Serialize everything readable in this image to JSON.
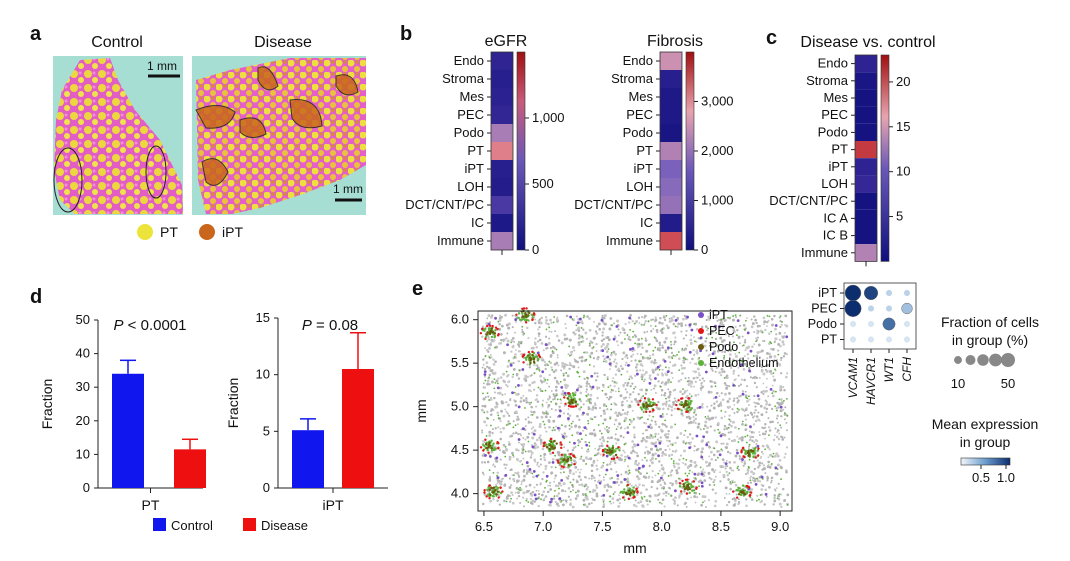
{
  "panel_labels": {
    "a": "a",
    "b": "b",
    "c": "c",
    "d": "d",
    "e": "e"
  },
  "panel_a": {
    "control_title": "Control",
    "disease_title": "Disease",
    "scale_control": "1 mm",
    "scale_disease": "1 mm",
    "legend": [
      {
        "label": "PT",
        "color": "#ece43a"
      },
      {
        "label": "iPT",
        "color": "#c9661c"
      }
    ]
  },
  "chart_data": [
    {
      "id": "egfr",
      "type": "heatmap",
      "title": "eGFR",
      "rows": [
        "Endo",
        "Stroma",
        "Mes",
        "PEC",
        "Podo",
        "PT",
        "iPT",
        "LOH",
        "DCT/CNT/PC",
        "IC",
        "Immune"
      ],
      "values": [
        400,
        300,
        350,
        420,
        950,
        1200,
        300,
        250,
        600,
        180,
        950
      ],
      "colorbar": {
        "min": 0,
        "max": 1500,
        "ticks": [
          0,
          500,
          1000
        ],
        "tick_labels": [
          "0",
          "500",
          "1,000"
        ]
      }
    },
    {
      "id": "fibrosis",
      "type": "heatmap",
      "title": "Fibrosis",
      "rows": [
        "Endo",
        "Stroma",
        "Mes",
        "PEC",
        "Podo",
        "PT",
        "iPT",
        "LOH",
        "DCT/CNT/PC",
        "IC",
        "Immune"
      ],
      "values": [
        2800,
        800,
        500,
        500,
        300,
        2600,
        2200,
        2300,
        2400,
        600,
        3500
      ],
      "colorbar": {
        "min": 0,
        "max": 4000,
        "ticks": [
          0,
          1000,
          2000,
          3000
        ],
        "tick_labels": [
          "0",
          "1,000",
          "2,000",
          "3,000"
        ]
      }
    },
    {
      "id": "disease_vs_control",
      "type": "heatmap",
      "title": "Disease vs. control",
      "rows": [
        "Endo",
        "Stroma",
        "Mes",
        "PEC",
        "Podo",
        "PT",
        "iPT",
        "LOH",
        "DCT/CNT/PC",
        "IC A",
        "IC B",
        "Immune"
      ],
      "values": [
        6,
        2,
        1,
        1,
        1,
        21,
        6,
        7,
        1,
        1,
        1,
        15
      ],
      "colorbar": {
        "min": 0,
        "max": 23,
        "ticks": [
          5,
          10,
          15,
          20
        ],
        "tick_labels": [
          "5",
          "10",
          "15",
          "20"
        ]
      }
    },
    {
      "id": "pt_fraction",
      "type": "bar",
      "categories": [
        "Control",
        "Disease"
      ],
      "values": [
        34,
        11.5
      ],
      "errors": [
        4,
        3
      ],
      "colors": [
        "#0f17ee",
        "#ee1010"
      ],
      "xlabel": "PT",
      "ylabel": "Fraction",
      "ylim": [
        0,
        50
      ],
      "yticks": [
        0,
        10,
        20,
        30,
        40,
        50
      ],
      "annotation_prefix": "P",
      "annotation_rest": " < 0.0001"
    },
    {
      "id": "ipt_fraction",
      "type": "bar",
      "categories": [
        "Control",
        "Disease"
      ],
      "values": [
        5.1,
        10.5
      ],
      "errors": [
        1,
        3.2
      ],
      "colors": [
        "#0f17ee",
        "#ee1010"
      ],
      "xlabel": "iPT",
      "ylabel": "Fraction",
      "ylim": [
        0,
        15
      ],
      "yticks": [
        0,
        5,
        10,
        15
      ],
      "annotation_prefix": "P",
      "annotation_rest": " = 0.08"
    },
    {
      "id": "spatial",
      "type": "scatter",
      "xlabel": "mm",
      "ylabel": "mm",
      "xlim": [
        6.45,
        9.1
      ],
      "ylim": [
        3.8,
        6.1
      ],
      "xticks": [
        6.5,
        7.0,
        7.5,
        8.0,
        8.5,
        9.0
      ],
      "xtick_labels": [
        "6.5",
        "7.0",
        "7.5",
        "8.0",
        "8.5",
        "9.0"
      ],
      "yticks": [
        4.0,
        4.5,
        5.0,
        5.5,
        6.0
      ],
      "ytick_labels": [
        "4.0",
        "4.5",
        "5.0",
        "5.5",
        "6.0"
      ],
      "series": [
        {
          "name": "iPT",
          "color": "#7a4fc8"
        },
        {
          "name": "PEC",
          "color": "#e01818"
        },
        {
          "name": "Podo",
          "color": "#6b5a10"
        },
        {
          "name": "Endothelium",
          "color": "#5cb23a"
        }
      ],
      "glomeruli": [
        {
          "x": 6.58,
          "y": 4.02
        },
        {
          "x": 6.55,
          "y": 4.55
        },
        {
          "x": 7.08,
          "y": 4.55
        },
        {
          "x": 7.58,
          "y": 4.48
        },
        {
          "x": 8.22,
          "y": 4.08
        },
        {
          "x": 8.75,
          "y": 4.48
        },
        {
          "x": 8.68,
          "y": 4.02
        },
        {
          "x": 7.72,
          "y": 4.02
        },
        {
          "x": 7.88,
          "y": 5.02
        },
        {
          "x": 8.2,
          "y": 5.02
        },
        {
          "x": 7.25,
          "y": 5.08
        },
        {
          "x": 6.85,
          "y": 6.05
        },
        {
          "x": 6.55,
          "y": 5.85
        },
        {
          "x": 6.9,
          "y": 5.55
        },
        {
          "x": 7.2,
          "y": 4.38
        }
      ]
    },
    {
      "id": "dotplot",
      "type": "scatter",
      "rows": [
        "iPT",
        "PEC",
        "Podo",
        "PT"
      ],
      "genes": [
        "VCAM1",
        "HAVCR1",
        "WT1",
        "CFH"
      ],
      "fraction_pct": [
        [
          65,
          45,
          5,
          5
        ],
        [
          70,
          5,
          5,
          25
        ],
        [
          5,
          5,
          35,
          5
        ],
        [
          5,
          5,
          5,
          5
        ]
      ],
      "mean_expr": [
        [
          1.0,
          0.9,
          0.2,
          0.2
        ],
        [
          1.0,
          0.2,
          0.2,
          0.3
        ],
        [
          0.1,
          0.1,
          0.7,
          0.1
        ],
        [
          0.1,
          0.1,
          0.1,
          0.1
        ]
      ],
      "size_legend_title": [
        "Fraction of cells",
        "in group (%)"
      ],
      "size_legend_values": [
        10,
        30,
        50
      ],
      "size_legend_tick_labels": [
        "10",
        "50"
      ],
      "color_legend_title": [
        "Mean expression",
        "in group"
      ],
      "color_legend_ticks": [
        0.5,
        1.0
      ],
      "color_legend_tick_labels": [
        "0.5",
        "1.0"
      ]
    }
  ],
  "bar_legend": [
    {
      "label": "Control",
      "color": "#0f17ee"
    },
    {
      "label": "Disease",
      "color": "#ee1010"
    }
  ]
}
